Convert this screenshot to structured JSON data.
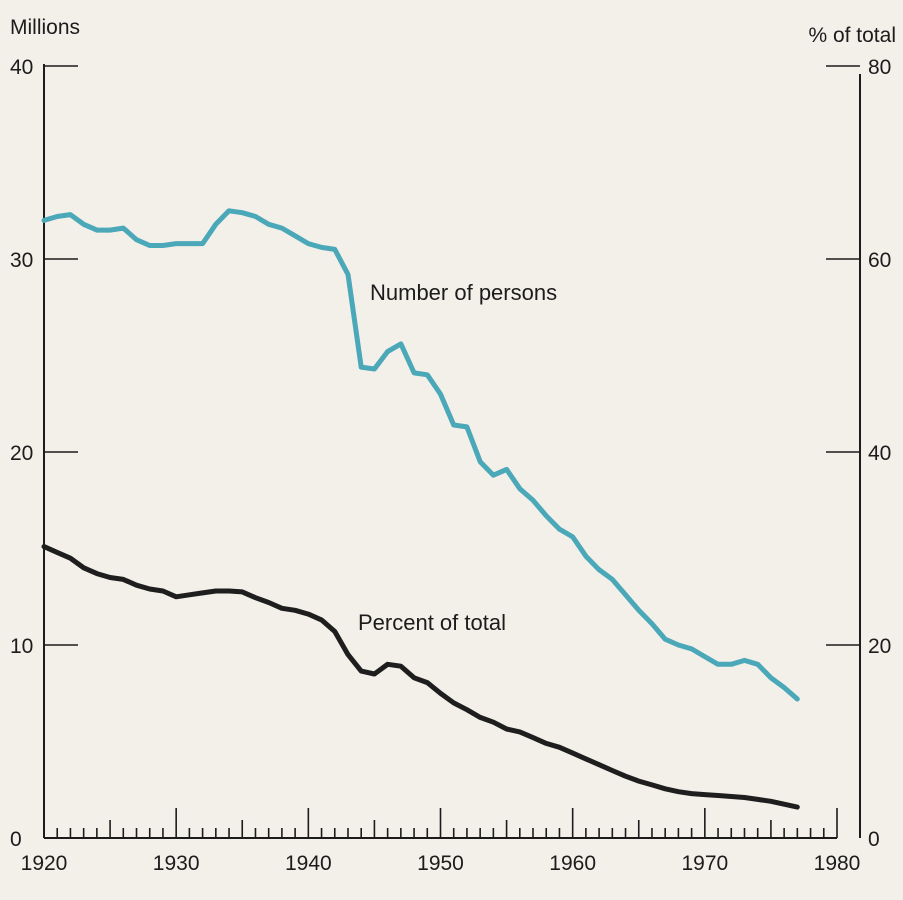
{
  "chart_data": {
    "type": "line",
    "title": "",
    "left_axis": {
      "label": "Millions",
      "range": [
        0,
        40
      ],
      "ticks": [
        0,
        10,
        20,
        30,
        40
      ]
    },
    "right_axis": {
      "label": "% of total",
      "range": [
        0,
        80
      ],
      "ticks": [
        0,
        20,
        40,
        60,
        80
      ]
    },
    "x_axis": {
      "range": [
        1920,
        1980
      ],
      "ticks": [
        1920,
        1930,
        1940,
        1950,
        1960,
        1970,
        1980
      ]
    },
    "grid": false,
    "series": [
      {
        "name": "Number of persons",
        "axis": "left",
        "color": "#4aa8b8",
        "x": [
          1920,
          1921,
          1922,
          1923,
          1924,
          1925,
          1926,
          1927,
          1928,
          1929,
          1930,
          1931,
          1932,
          1933,
          1934,
          1935,
          1936,
          1937,
          1938,
          1939,
          1940,
          1941,
          1942,
          1943,
          1944,
          1945,
          1946,
          1947,
          1948,
          1949,
          1950,
          1951,
          1952,
          1953,
          1954,
          1955,
          1956,
          1957,
          1958,
          1959,
          1960,
          1961,
          1962,
          1963,
          1964,
          1965,
          1966,
          1967,
          1968,
          1969,
          1970,
          1971,
          1972,
          1973,
          1974,
          1975,
          1976,
          1977
        ],
        "values": [
          32.0,
          32.2,
          32.3,
          31.8,
          31.5,
          31.5,
          31.6,
          31.0,
          30.7,
          30.7,
          30.8,
          30.8,
          30.8,
          31.8,
          32.5,
          32.4,
          32.2,
          31.8,
          31.6,
          31.2,
          30.8,
          30.6,
          30.5,
          29.2,
          24.4,
          24.3,
          25.2,
          25.6,
          24.1,
          24.0,
          23.0,
          21.4,
          21.3,
          19.5,
          18.8,
          19.1,
          18.1,
          17.5,
          16.7,
          16.0,
          15.6,
          14.6,
          13.9,
          13.4,
          12.6,
          11.8,
          11.1,
          10.3,
          10.0,
          9.8,
          9.4,
          9.0,
          9.0,
          9.2,
          9.0,
          8.3,
          7.8,
          7.2
        ]
      },
      {
        "name": "Percent of total",
        "axis": "right",
        "color": "#1e1e1e",
        "x": [
          1920,
          1921,
          1922,
          1923,
          1924,
          1925,
          1926,
          1927,
          1928,
          1929,
          1930,
          1931,
          1932,
          1933,
          1934,
          1935,
          1936,
          1937,
          1938,
          1939,
          1940,
          1941,
          1942,
          1943,
          1944,
          1945,
          1946,
          1947,
          1948,
          1949,
          1950,
          1951,
          1952,
          1953,
          1954,
          1955,
          1956,
          1957,
          1958,
          1959,
          1960,
          1961,
          1962,
          1963,
          1964,
          1965,
          1966,
          1967,
          1968,
          1969,
          1970,
          1971,
          1972,
          1973,
          1974,
          1975,
          1976,
          1977
        ],
        "values": [
          30.2,
          29.6,
          29.0,
          28.0,
          27.4,
          27.0,
          26.8,
          26.2,
          25.8,
          25.6,
          25.0,
          25.2,
          25.4,
          25.6,
          25.6,
          25.5,
          24.9,
          24.4,
          23.8,
          23.6,
          23.2,
          22.6,
          21.4,
          19.0,
          17.3,
          17.0,
          18.0,
          17.8,
          16.6,
          16.1,
          15.0,
          14.0,
          13.3,
          12.5,
          12.0,
          11.3,
          11.0,
          10.4,
          9.8,
          9.4,
          8.8,
          8.2,
          7.6,
          7.0,
          6.4,
          5.9,
          5.5,
          5.1,
          4.8,
          4.6,
          4.5,
          4.4,
          4.3,
          4.2,
          4.0,
          3.8,
          3.5,
          3.2
        ]
      }
    ]
  }
}
